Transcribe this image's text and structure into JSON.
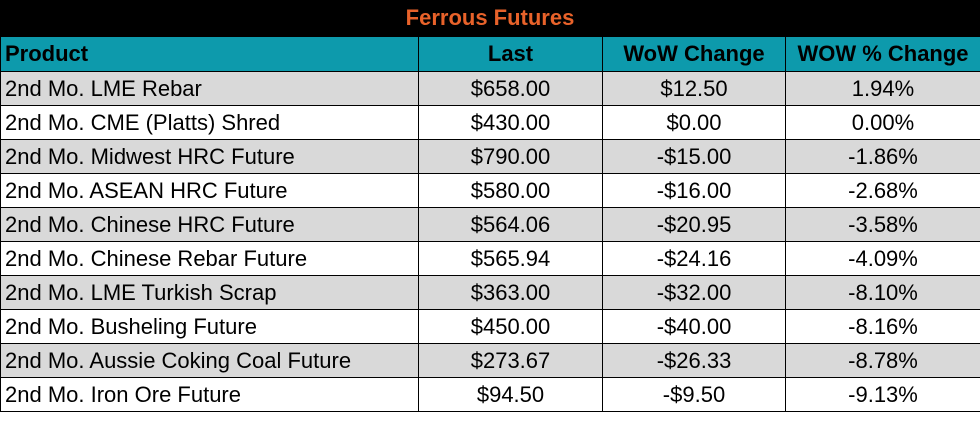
{
  "table": {
    "title": "Ferrous Futures",
    "headers": [
      "Product",
      "Last",
      "WoW Change",
      "WOW % Change"
    ],
    "rows": [
      {
        "product": "2nd Mo. LME Rebar",
        "last": "$658.00",
        "wow_change": "$12.50",
        "wow_pct": "1.94%"
      },
      {
        "product": "2nd Mo. CME (Platts) Shred",
        "last": "$430.00",
        "wow_change": "$0.00",
        "wow_pct": "0.00%"
      },
      {
        "product": "2nd Mo. Midwest HRC Future",
        "last": "$790.00",
        "wow_change": "-$15.00",
        "wow_pct": "-1.86%"
      },
      {
        "product": "2nd Mo. ASEAN HRC Future",
        "last": "$580.00",
        "wow_change": "-$16.00",
        "wow_pct": "-2.68%"
      },
      {
        "product": "2nd Mo. Chinese HRC Future",
        "last": "$564.06",
        "wow_change": "-$20.95",
        "wow_pct": "-3.58%"
      },
      {
        "product": "2nd Mo. Chinese Rebar Future",
        "last": "$565.94",
        "wow_change": "-$24.16",
        "wow_pct": "-4.09%"
      },
      {
        "product": "2nd Mo. LME Turkish Scrap",
        "last": "$363.00",
        "wow_change": "-$32.00",
        "wow_pct": "-8.10%"
      },
      {
        "product": "2nd Mo. Busheling Future",
        "last": "$450.00",
        "wow_change": "-$40.00",
        "wow_pct": "-8.16%"
      },
      {
        "product": "2nd Mo. Aussie Coking Coal Future",
        "last": "$273.67",
        "wow_change": "-$26.33",
        "wow_pct": "-8.78%"
      },
      {
        "product": "2nd Mo. Iron Ore Future",
        "last": "$94.50",
        "wow_change": "-$9.50",
        "wow_pct": "-9.13%"
      }
    ],
    "colors": {
      "title_bg": "#000000",
      "title_text": "#e8622a",
      "header_bg": "#0d9aac",
      "row_alt": "#d9d9d9",
      "row": "#ffffff"
    }
  }
}
